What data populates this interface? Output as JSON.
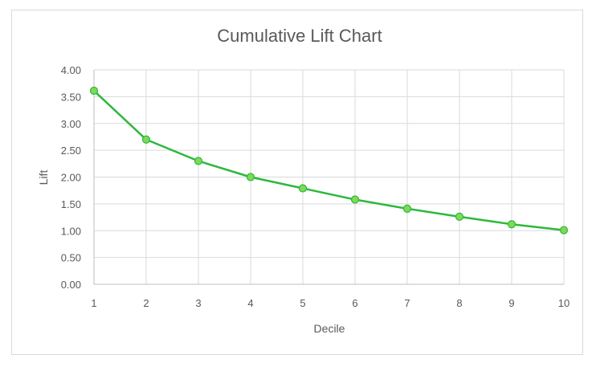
{
  "chart_data": {
    "type": "line",
    "title": "Cumulative Lift Chart",
    "xlabel": "Decile",
    "ylabel": "Lift",
    "x": [
      1,
      2,
      3,
      4,
      5,
      6,
      7,
      8,
      9,
      10
    ],
    "series": [
      {
        "values": [
          3.61,
          2.7,
          2.3,
          2.0,
          1.79,
          1.58,
          1.41,
          1.26,
          1.12,
          1.01
        ]
      }
    ],
    "xlim": [
      1,
      10
    ],
    "ylim": [
      0,
      4
    ],
    "x_ticks": [
      "1",
      "2",
      "3",
      "4",
      "5",
      "6",
      "7",
      "8",
      "9",
      "10"
    ],
    "y_ticks": [
      "0.00",
      "0.50",
      "1.00",
      "1.50",
      "2.00",
      "2.50",
      "3.00",
      "3.50",
      "4.00"
    ],
    "grid": true,
    "legend": "none",
    "colors": {
      "line": "#2db83d",
      "marker_fill": "#7ed957",
      "marker_stroke": "#2db83d",
      "grid": "#d9d9d9",
      "axis": "#bfbfbf"
    }
  }
}
